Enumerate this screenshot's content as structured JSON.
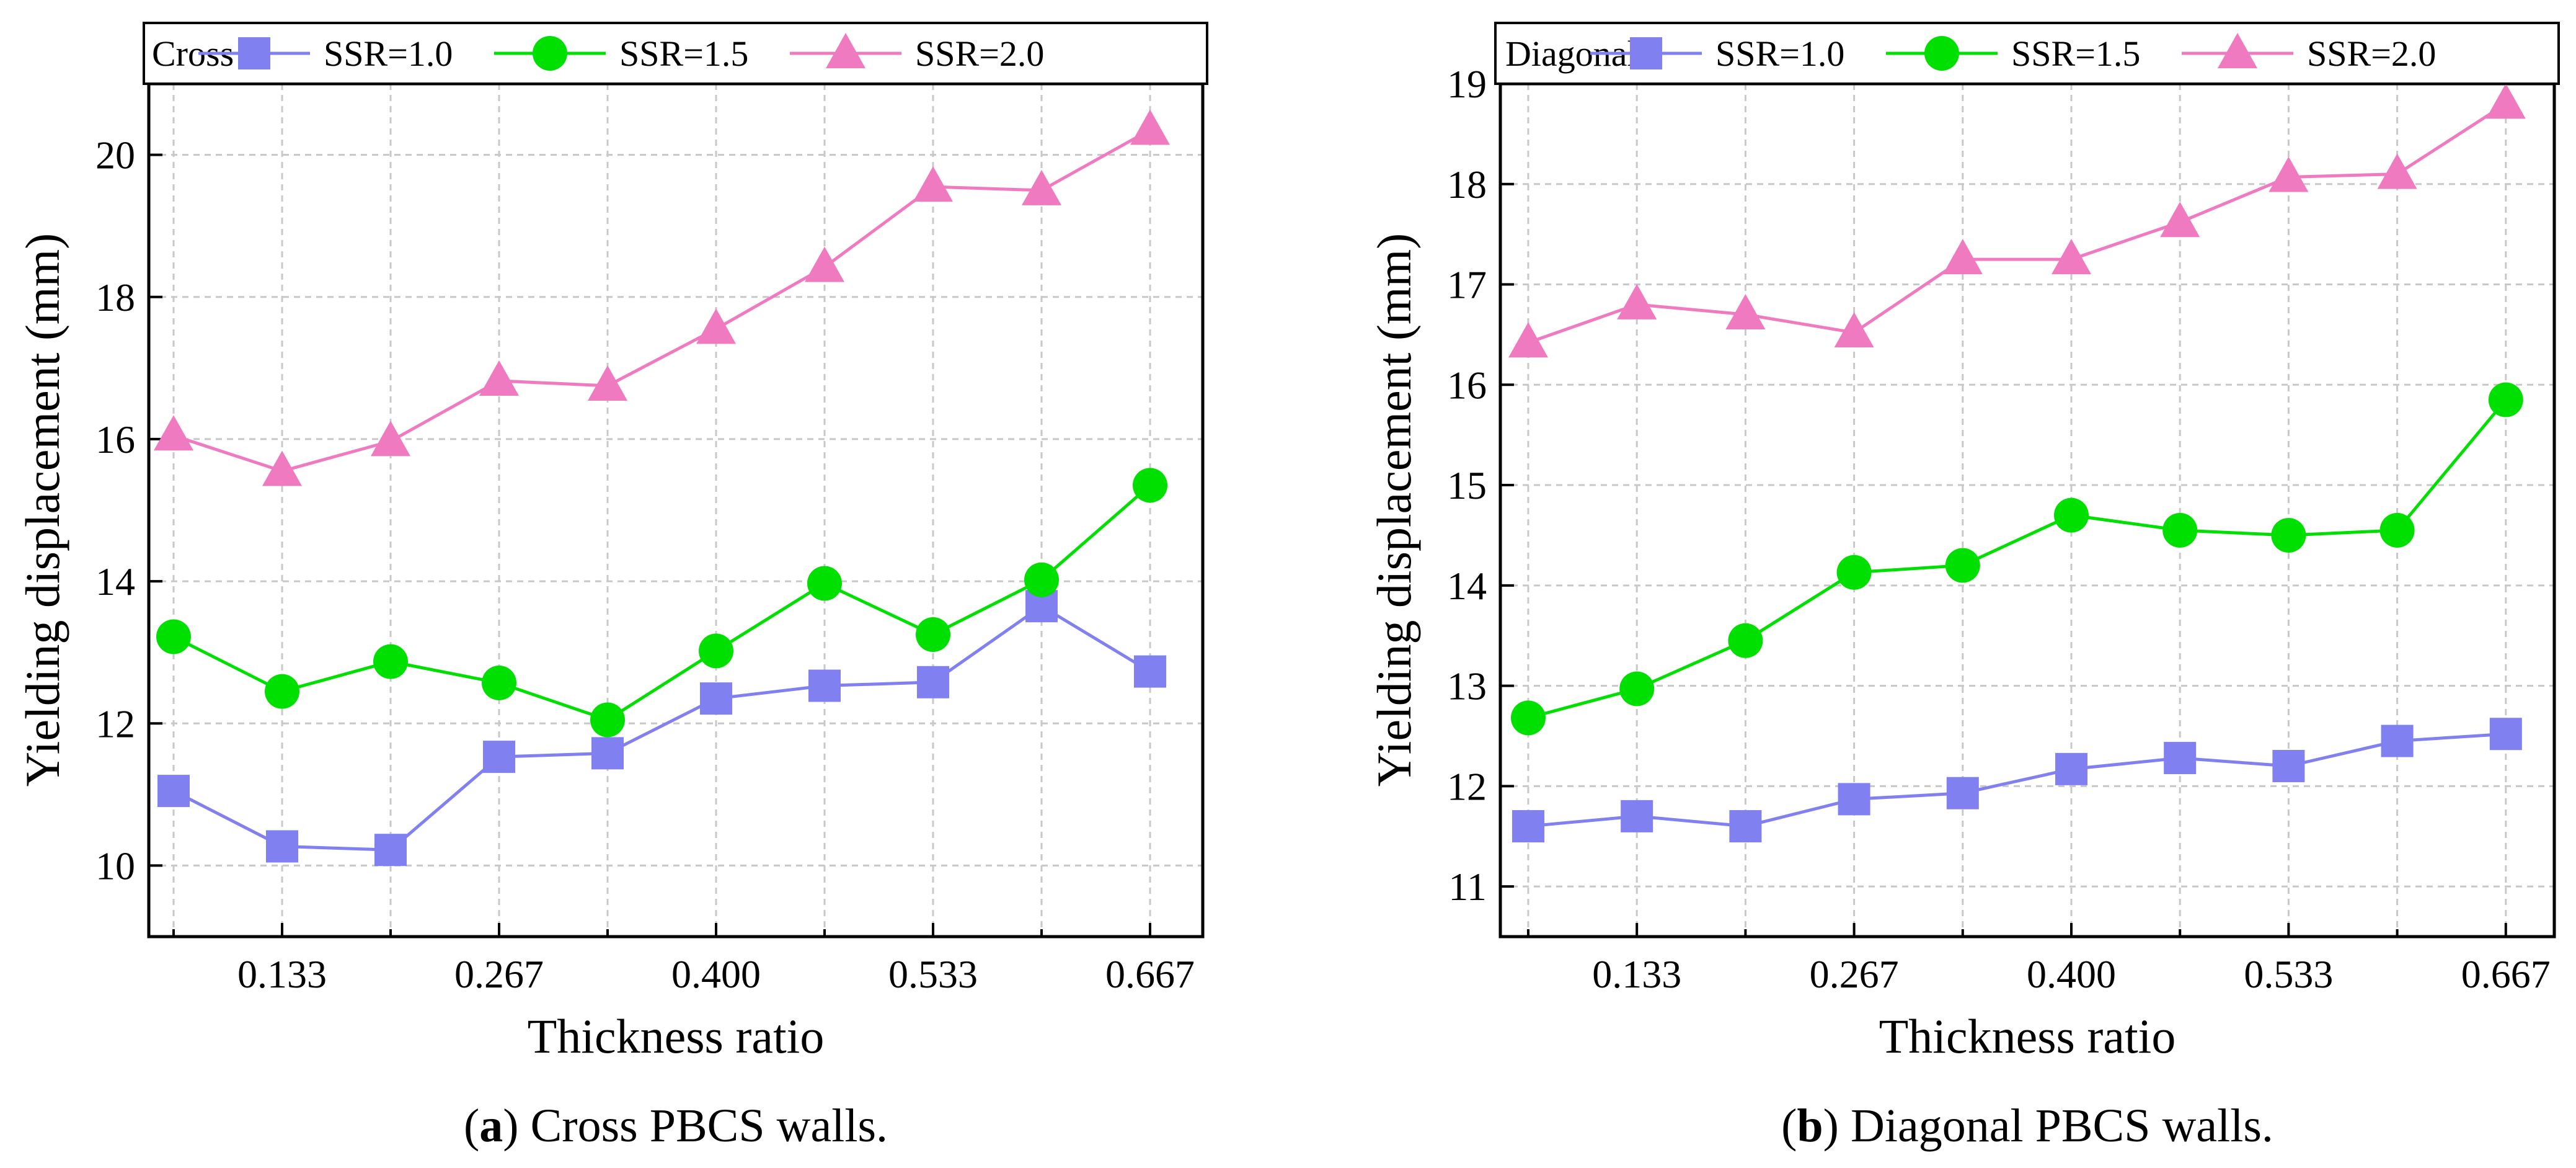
{
  "chart_data": [
    {
      "type": "line",
      "legend_title": "Cross",
      "categories": [
        "0.067",
        "0.133",
        "0.200",
        "0.267",
        "0.333",
        "0.400",
        "0.467",
        "0.533",
        "0.600",
        "0.667"
      ],
      "xticks": [
        "0.133",
        "0.267",
        "0.400",
        "0.533",
        "0.667"
      ],
      "series": [
        {
          "name": "SSR=1.0",
          "marker": "square",
          "color": "#8080f0",
          "values": [
            11.05,
            10.27,
            10.22,
            11.53,
            11.58,
            12.35,
            12.53,
            12.58,
            13.65,
            12.73
          ]
        },
        {
          "name": "SSR=1.5",
          "marker": "circle",
          "color": "#00e000",
          "values": [
            13.22,
            12.45,
            12.87,
            12.57,
            12.05,
            13.02,
            13.97,
            13.25,
            14.02,
            15.35
          ]
        },
        {
          "name": "SSR=2.0",
          "marker": "triangle",
          "color": "#f07ac0",
          "values": [
            16.05,
            15.55,
            15.97,
            16.82,
            16.75,
            17.55,
            18.42,
            19.55,
            19.5,
            20.35
          ]
        }
      ],
      "xlabel": "Thickness ratio",
      "ylabel": "Yielding displacement (mm)",
      "ylim": [
        9,
        21
      ],
      "yticks": [
        "10",
        "12",
        "14",
        "16",
        "18",
        "20"
      ],
      "grid": true,
      "legend_position": "top"
    },
    {
      "type": "line",
      "legend_title": "Diagonal",
      "categories": [
        "0.067",
        "0.133",
        "0.200",
        "0.267",
        "0.333",
        "0.400",
        "0.467",
        "0.533",
        "0.600",
        "0.667"
      ],
      "xticks": [
        "0.133",
        "0.267",
        "0.400",
        "0.533",
        "0.667"
      ],
      "series": [
        {
          "name": "SSR=1.0",
          "marker": "square",
          "color": "#8080f0",
          "values": [
            11.6,
            11.7,
            11.6,
            11.87,
            11.93,
            12.17,
            12.28,
            12.2,
            12.45,
            12.52
          ]
        },
        {
          "name": "SSR=1.5",
          "marker": "circle",
          "color": "#00e000",
          "values": [
            12.68,
            12.97,
            13.45,
            14.13,
            14.2,
            14.7,
            14.55,
            14.5,
            14.55,
            15.85
          ]
        },
        {
          "name": "SSR=2.0",
          "marker": "triangle",
          "color": "#f07ac0",
          "values": [
            16.42,
            16.8,
            16.7,
            16.52,
            17.25,
            17.25,
            17.62,
            18.07,
            18.1,
            18.8
          ]
        }
      ],
      "xlabel": "Thickness ratio",
      "ylabel": "Yielding displacement  (mm)",
      "ylim": [
        10.5,
        19
      ],
      "yticks": [
        "11",
        "12",
        "13",
        "14",
        "15",
        "16",
        "17",
        "18",
        "19"
      ],
      "grid": true,
      "legend_position": "top"
    }
  ],
  "captions": [
    {
      "letter": "a",
      "text": " Cross PBCS walls."
    },
    {
      "letter": "b",
      "text": " Diagonal PBCS walls."
    }
  ]
}
